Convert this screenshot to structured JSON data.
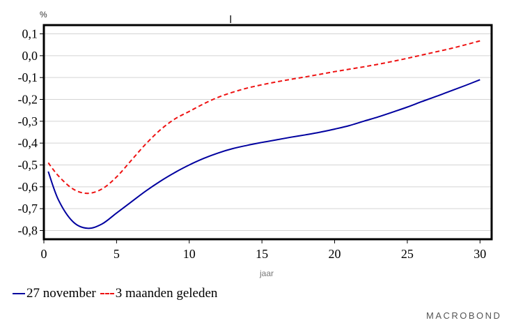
{
  "chart_data": {
    "type": "line",
    "unit_label": "%",
    "xlabel": "jaar",
    "ylabel": "",
    "xlim": [
      0,
      30.8
    ],
    "ylim": [
      -0.84,
      0.14
    ],
    "x_ticks": [
      0,
      5,
      10,
      15,
      20,
      25,
      30
    ],
    "x_tick_labels": [
      "0",
      "5",
      "10",
      "15",
      "20",
      "25",
      "30"
    ],
    "y_ticks": [
      0.1,
      0.0,
      -0.1,
      -0.2,
      -0.3,
      -0.4,
      -0.5,
      -0.6,
      -0.7,
      -0.8
    ],
    "y_tick_labels": [
      "0,1",
      "0,0",
      "-0,1",
      "-0,2",
      "-0,3",
      "-0,4",
      "-0,5",
      "-0,6",
      "-0,7",
      "-0,8"
    ],
    "grid": true,
    "series": [
      {
        "name": "27 november",
        "color": "#00009f",
        "style": "solid",
        "x": [
          0.3,
          1,
          2,
          3,
          4,
          5,
          6,
          7,
          8,
          9,
          10,
          11,
          12,
          13,
          14,
          15,
          16,
          17,
          18,
          19,
          20,
          21,
          22,
          23,
          24,
          25,
          26,
          27,
          28,
          29,
          30
        ],
        "y": [
          -0.53,
          -0.66,
          -0.76,
          -0.79,
          -0.77,
          -0.72,
          -0.67,
          -0.62,
          -0.575,
          -0.535,
          -0.5,
          -0.47,
          -0.445,
          -0.425,
          -0.41,
          -0.397,
          -0.385,
          -0.373,
          -0.362,
          -0.35,
          -0.336,
          -0.32,
          -0.3,
          -0.28,
          -0.258,
          -0.235,
          -0.21,
          -0.186,
          -0.161,
          -0.136,
          -0.11
        ]
      },
      {
        "name": "3 maanden geleden",
        "color": "#ee1111",
        "style": "dashed",
        "x": [
          0.3,
          1,
          2,
          3,
          4,
          5,
          6,
          7,
          8,
          9,
          10,
          11,
          12,
          13,
          14,
          15,
          16,
          17,
          18,
          19,
          20,
          21,
          22,
          23,
          24,
          25,
          26,
          27,
          28,
          29,
          30
        ],
        "y": [
          -0.49,
          -0.55,
          -0.61,
          -0.63,
          -0.61,
          -0.555,
          -0.48,
          -0.405,
          -0.34,
          -0.29,
          -0.255,
          -0.22,
          -0.19,
          -0.167,
          -0.148,
          -0.133,
          -0.12,
          -0.108,
          -0.097,
          -0.085,
          -0.073,
          -0.062,
          -0.051,
          -0.039,
          -0.026,
          -0.012,
          0.003,
          0.018,
          0.033,
          0.05,
          0.068
        ]
      }
    ]
  },
  "legend": {
    "items": [
      {
        "label": "27 november",
        "style": "solid",
        "color": "#00009f"
      },
      {
        "label": "3 maanden geleden",
        "style": "dashed",
        "color": "#ee1111"
      }
    ]
  },
  "brand": "MACROBOND"
}
